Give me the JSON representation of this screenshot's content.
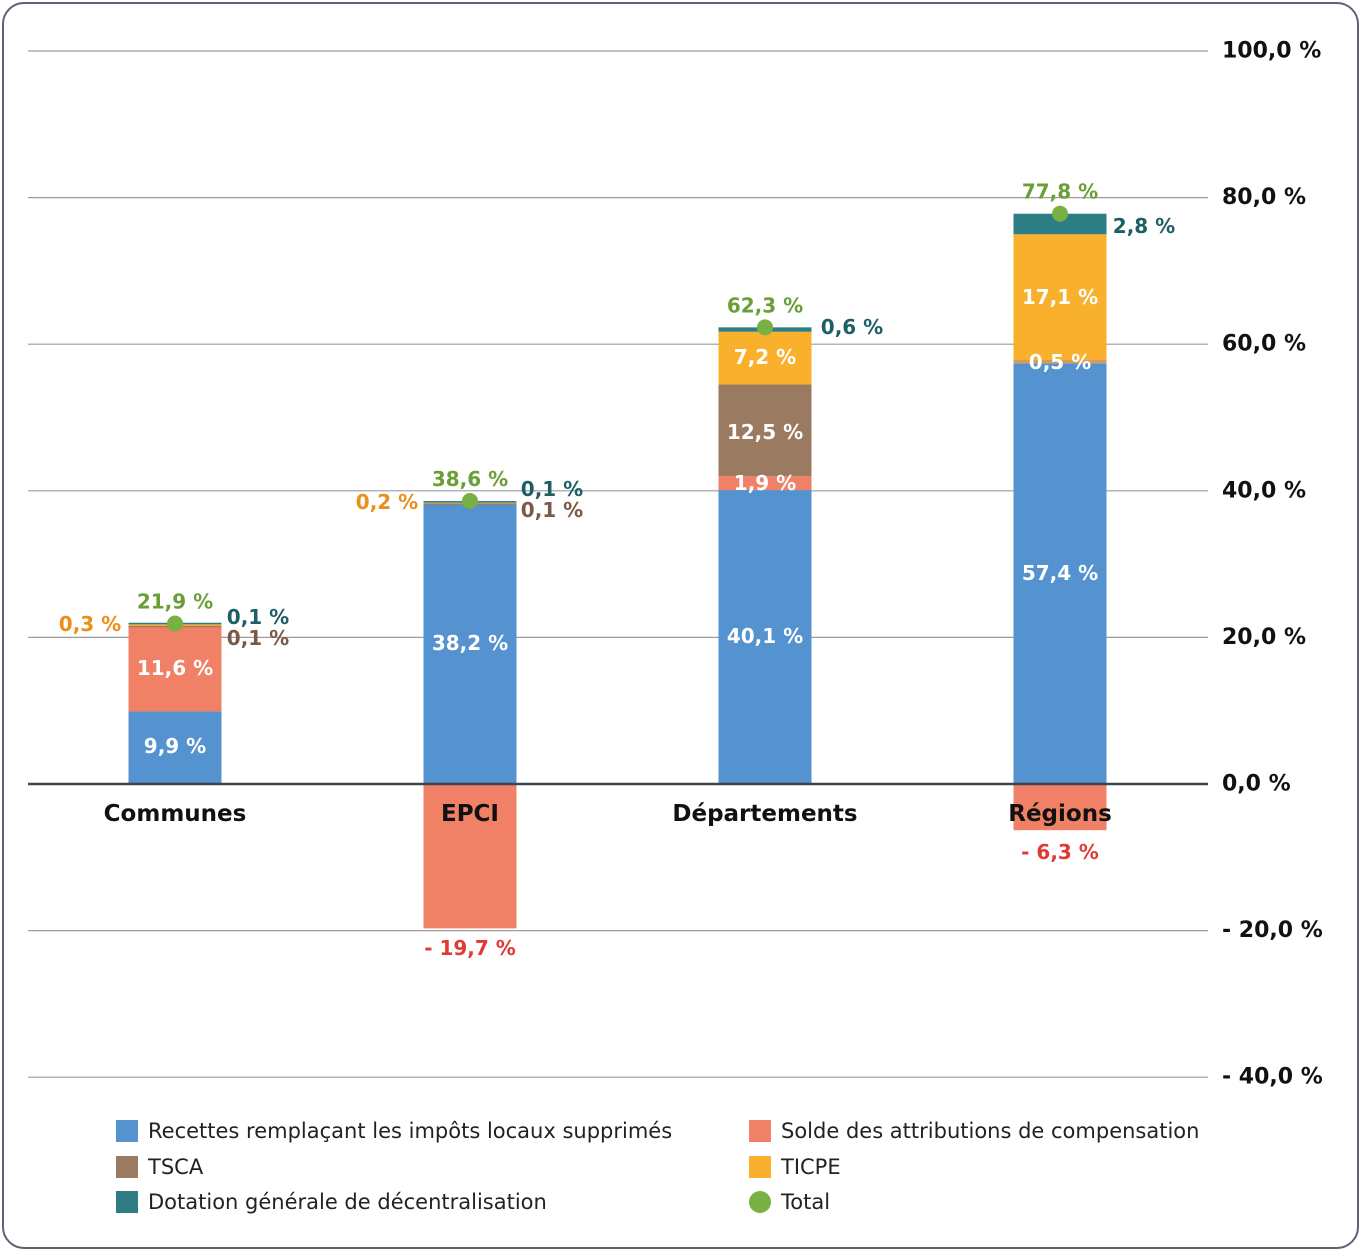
{
  "chart_data": {
    "type": "bar",
    "stacked": true,
    "categories": [
      "Communes",
      "EPCI",
      "Départements",
      "Régions"
    ],
    "y_axis": {
      "ylim": [
        -40,
        100
      ],
      "ticks": [
        100,
        80,
        60,
        40,
        20,
        0,
        -20,
        -40
      ],
      "tick_labels": [
        "100,0 %",
        "80,0 %",
        "60,0 %",
        "40,0 %",
        "20,0 %",
        "0,0 %",
        "- 20,0 %",
        "- 40,0 %"
      ],
      "position": "right",
      "grid": true
    },
    "series": [
      {
        "key": "recettes",
        "name": "Recettes remplaçant les impôts locaux supprimés",
        "color": "#5592d0",
        "values": [
          9.9,
          38.2,
          40.1,
          57.4
        ],
        "labels": [
          "9,9 %",
          "38,2 %",
          "40,1 %",
          "57,4 %"
        ]
      },
      {
        "key": "solde",
        "name": "Solde des attributions de compensation",
        "color": "#f08066",
        "values": [
          11.6,
          -19.7,
          1.9,
          -6.3
        ],
        "labels": [
          "11,6 %",
          "- 19,7 %",
          "1,9 %",
          "- 6,3 %"
        ]
      },
      {
        "key": "tsca",
        "name": "TSCA",
        "color": "#9b7a62",
        "values": [
          0.1,
          0.1,
          12.5,
          0
        ],
        "labels": [
          "0,1 %",
          "0,1 %",
          "12,5 %",
          ""
        ]
      },
      {
        "key": "ticpe",
        "name": "TICPE",
        "color": "#f8b02d",
        "values": [
          0.3,
          0.2,
          7.2,
          17.1
        ],
        "labels": [
          "0,3 %",
          "0,2 %",
          "7,2 %",
          "17,1 %"
        ]
      },
      {
        "key": "dgd",
        "name": "Dotation générale de décentralisation",
        "color": "#2e7d84",
        "values": [
          0.1,
          0.1,
          0.6,
          2.8
        ],
        "labels": [
          "0,1 %",
          "0,1 %",
          "0,6 %",
          "2,8 %"
        ]
      }
    ],
    "extra_segments": [
      {
        "category": "Régions",
        "value": 0.5,
        "label": "0,5 %",
        "color": "#d99a54"
      }
    ],
    "total": {
      "name": "Total",
      "color": "#78b043",
      "values": [
        21.9,
        38.6,
        62.3,
        77.8
      ],
      "labels": [
        "21,9 %",
        "38,6 %",
        "62,3 %",
        "77,8 %"
      ]
    },
    "label_colors": {
      "inside": "#ffffff",
      "negative": "#e03b33",
      "ticpe_outside": "#e8901a",
      "tsca_outside": "#7a5a44",
      "dgd_outside": "#1e5f66",
      "total": "#6a9e36"
    },
    "legend": {
      "placement": "bottom",
      "items": [
        {
          "key": "recettes",
          "label": "Recettes remplaçant les impôts locaux supprimés",
          "color": "#5592d0",
          "shape": "square"
        },
        {
          "key": "solde",
          "label": "Solde des attributions de compensation",
          "color": "#f08066",
          "shape": "square"
        },
        {
          "key": "tsca",
          "label": "TSCA",
          "color": "#9b7a62",
          "shape": "square"
        },
        {
          "key": "ticpe",
          "label": "TICPE",
          "color": "#f8b02d",
          "shape": "square"
        },
        {
          "key": "dgd",
          "label": "Dotation générale de décentralisation",
          "color": "#2e7d84",
          "shape": "square"
        },
        {
          "key": "total",
          "label": "Total",
          "color": "#78b043",
          "shape": "circle"
        }
      ]
    }
  }
}
